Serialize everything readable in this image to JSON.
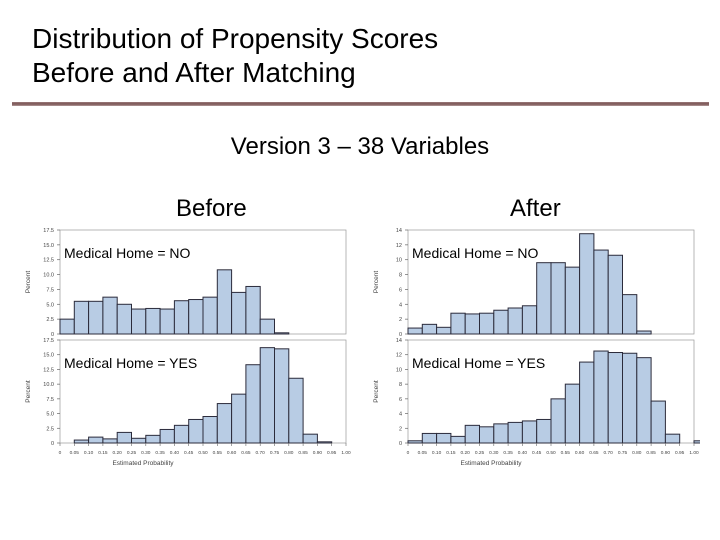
{
  "slide": {
    "title_line1": "Distribution of Propensity Scores",
    "title_line2": "Before and After Matching",
    "subtitle": "Version 3 – 38 Variables",
    "before_heading": "Before",
    "after_heading": "After"
  },
  "colors": {
    "bar_fill": "#b8cce4",
    "bar_stroke": "#2b2b3b",
    "rule": "#8b6464"
  },
  "chart_data": [
    {
      "type": "bar",
      "name": "Before",
      "xlabel": "Estimated Probability",
      "ylabel": "Percent",
      "xlim": [
        0,
        1
      ],
      "xticks": [
        "0",
        "0.05",
        "0.10",
        "0.15",
        "0.20",
        "0.25",
        "0.30",
        "0.35",
        "0.40",
        "0.45",
        "0.50",
        "0.55",
        "0.60",
        "0.65",
        "0.70",
        "0.75",
        "0.80",
        "0.85",
        "0.90",
        "0.95",
        "1.00"
      ],
      "panels": [
        {
          "label": "Medical Home = NO",
          "ylim": [
            0,
            17.5
          ],
          "yticks": [
            "0",
            "2.5",
            "5.0",
            "7.5",
            "10.0",
            "12.5",
            "15.0",
            "17.5"
          ],
          "bins_start": 0.025,
          "bin_width": 0.05,
          "values": [
            2.5,
            5.5,
            5.5,
            6.2,
            5.0,
            4.2,
            4.3,
            4.2,
            5.6,
            5.8,
            6.2,
            10.8,
            7.0,
            8.0,
            2.5,
            0.2
          ]
        },
        {
          "label": "Medical Home = YES",
          "ylim": [
            0,
            17.5
          ],
          "yticks": [
            "0",
            "2.5",
            "5.0",
            "7.5",
            "10.0",
            "12.5",
            "15.0",
            "17.5"
          ],
          "bins_start": 0.075,
          "bin_width": 0.05,
          "values": [
            0.5,
            1.0,
            0.7,
            1.8,
            0.8,
            1.3,
            2.3,
            3.0,
            4.0,
            4.5,
            6.7,
            8.3,
            13.3,
            16.2,
            16.0,
            11.0,
            1.5,
            0.2
          ]
        }
      ]
    },
    {
      "type": "bar",
      "name": "After",
      "xlabel": "Estimated Probability",
      "ylabel": "Percent",
      "xlim": [
        0,
        1
      ],
      "xticks": [
        "0",
        "0.05",
        "0.10",
        "0.15",
        "0.20",
        "0.25",
        "0.30",
        "0.35",
        "0.40",
        "0.45",
        "0.50",
        "0.55",
        "0.60",
        "0.65",
        "0.70",
        "0.75",
        "0.80",
        "0.85",
        "0.90",
        "0.95",
        "1.00"
      ],
      "panels": [
        {
          "label": "Medical Home = NO",
          "ylim": [
            0,
            14
          ],
          "yticks": [
            "0",
            "2",
            "4",
            "6",
            "8",
            "10",
            "12",
            "14"
          ],
          "bins_start": 0.025,
          "bin_width": 0.05,
          "values": [
            0.8,
            1.3,
            0.9,
            2.8,
            2.7,
            2.8,
            3.2,
            3.5,
            3.8,
            9.6,
            9.6,
            9.0,
            13.5,
            11.3,
            10.6,
            5.3,
            0.4
          ]
        },
        {
          "label": "Medical Home = YES",
          "ylim": [
            0,
            14
          ],
          "yticks": [
            "0",
            "2",
            "4",
            "6",
            "8",
            "10",
            "12",
            "14"
          ],
          "bins_start": 0.025,
          "bin_width": 0.05,
          "values": [
            0.3,
            1.3,
            1.3,
            0.9,
            2.4,
            2.2,
            2.6,
            2.8,
            3.0,
            3.2,
            6.0,
            8.0,
            11.0,
            12.5,
            12.3,
            12.2,
            11.6,
            5.7,
            1.2,
            0.0,
            0.3
          ]
        }
      ]
    }
  ]
}
